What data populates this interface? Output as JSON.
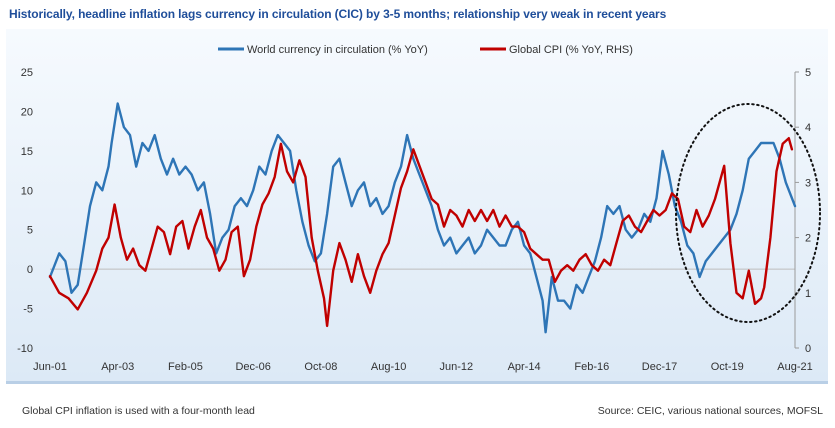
{
  "title": "Historically, headline inflation lags currency in circulation (CIC) by 3-5 months; relationship very weak in recent years",
  "footnote_left": "Global CPI inflation is used with a four-month lead",
  "footnote_right": "Source: CEIC, various national sources, MOFSL",
  "colors": {
    "cic": "#2e75b6",
    "cpi": "#c00000"
  },
  "chart_data": {
    "type": "line",
    "title": "",
    "x_range": [
      "Jun-01",
      "Aug-21"
    ],
    "x_tick_labels": [
      "Jun-01",
      "Apr-03",
      "Feb-05",
      "Dec-06",
      "Oct-08",
      "Aug-10",
      "Jun-12",
      "Apr-14",
      "Feb-16",
      "Dec-17",
      "Oct-19",
      "Aug-21"
    ],
    "y_left": {
      "range": [
        -10,
        25
      ],
      "ticks": [
        "25",
        "20",
        "15",
        "10",
        "5",
        "0",
        "-5",
        "-10"
      ]
    },
    "y_right": {
      "range": [
        0,
        5
      ],
      "ticks": [
        "5",
        "4",
        "3",
        "2",
        "1",
        "0"
      ]
    },
    "grid": false,
    "legend": "top-center",
    "annotation": "dotted ellipse around Nov-18 to Aug-21",
    "series": [
      {
        "name": "World currency in circulation (% YoY)",
        "axis": "left",
        "points": [
          [
            "Jun-01",
            -1
          ],
          [
            "Sep-01",
            2
          ],
          [
            "Nov-01",
            1
          ],
          [
            "Jan-02",
            -3
          ],
          [
            "Mar-02",
            -2
          ],
          [
            "May-02",
            3
          ],
          [
            "Jul-02",
            8
          ],
          [
            "Sep-02",
            11
          ],
          [
            "Nov-02",
            10
          ],
          [
            "Jan-03",
            13
          ],
          [
            "Feb-03",
            16
          ],
          [
            "Apr-03",
            21
          ],
          [
            "Jun-03",
            18
          ],
          [
            "Aug-03",
            17
          ],
          [
            "Oct-03",
            13
          ],
          [
            "Dec-03",
            16
          ],
          [
            "Feb-04",
            15
          ],
          [
            "Apr-04",
            17
          ],
          [
            "Jun-04",
            14
          ],
          [
            "Aug-04",
            12
          ],
          [
            "Oct-04",
            14
          ],
          [
            "Dec-04",
            12
          ],
          [
            "Feb-05",
            13
          ],
          [
            "Apr-05",
            12
          ],
          [
            "Jun-05",
            10
          ],
          [
            "Aug-05",
            11
          ],
          [
            "Oct-05",
            7
          ],
          [
            "Dec-05",
            2
          ],
          [
            "Feb-06",
            4
          ],
          [
            "Apr-06",
            5
          ],
          [
            "Jun-06",
            8
          ],
          [
            "Aug-06",
            9
          ],
          [
            "Oct-06",
            8
          ],
          [
            "Dec-06",
            10
          ],
          [
            "Feb-07",
            13
          ],
          [
            "Apr-07",
            12
          ],
          [
            "Jun-07",
            15
          ],
          [
            "Aug-07",
            17
          ],
          [
            "Oct-07",
            16
          ],
          [
            "Dec-07",
            15
          ],
          [
            "Feb-08",
            10
          ],
          [
            "Apr-08",
            6
          ],
          [
            "Jun-08",
            3
          ],
          [
            "Aug-08",
            1
          ],
          [
            "Oct-08",
            2
          ],
          [
            "Dec-08",
            7
          ],
          [
            "Feb-09",
            13
          ],
          [
            "Apr-09",
            14
          ],
          [
            "Jun-09",
            11
          ],
          [
            "Aug-09",
            8
          ],
          [
            "Oct-09",
            10
          ],
          [
            "Dec-09",
            11
          ],
          [
            "Feb-10",
            8
          ],
          [
            "Apr-10",
            9
          ],
          [
            "Jun-10",
            7
          ],
          [
            "Aug-10",
            8
          ],
          [
            "Oct-10",
            11
          ],
          [
            "Dec-10",
            13
          ],
          [
            "Feb-11",
            17
          ],
          [
            "Apr-11",
            14
          ],
          [
            "Jun-11",
            12
          ],
          [
            "Aug-11",
            10
          ],
          [
            "Oct-11",
            8
          ],
          [
            "Dec-11",
            5
          ],
          [
            "Feb-12",
            3
          ],
          [
            "Apr-12",
            4
          ],
          [
            "Jun-12",
            2
          ],
          [
            "Aug-12",
            3
          ],
          [
            "Oct-12",
            4
          ],
          [
            "Dec-12",
            2
          ],
          [
            "Feb-13",
            3
          ],
          [
            "Apr-13",
            5
          ],
          [
            "Jun-13",
            4
          ],
          [
            "Aug-13",
            3
          ],
          [
            "Oct-13",
            3
          ],
          [
            "Dec-13",
            5
          ],
          [
            "Feb-14",
            6
          ],
          [
            "Apr-14",
            3
          ],
          [
            "Jun-14",
            2
          ],
          [
            "Aug-14",
            -1
          ],
          [
            "Oct-14",
            -4
          ],
          [
            "Nov-14",
            -8
          ],
          [
            "Jan-15",
            -1
          ],
          [
            "Mar-15",
            -4
          ],
          [
            "May-15",
            -4
          ],
          [
            "Jul-15",
            -5
          ],
          [
            "Sep-15",
            -2
          ],
          [
            "Nov-15",
            -3
          ],
          [
            "Jan-16",
            -1
          ],
          [
            "Mar-16",
            1
          ],
          [
            "May-16",
            4
          ],
          [
            "Jul-16",
            8
          ],
          [
            "Sep-16",
            7
          ],
          [
            "Nov-16",
            8
          ],
          [
            "Jan-17",
            5
          ],
          [
            "Mar-17",
            4
          ],
          [
            "May-17",
            5
          ],
          [
            "Jul-17",
            7
          ],
          [
            "Sep-17",
            6
          ],
          [
            "Nov-17",
            9
          ],
          [
            "Jan-18",
            15
          ],
          [
            "Mar-18",
            12
          ],
          [
            "May-18",
            8
          ],
          [
            "Jul-18",
            6
          ],
          [
            "Sep-18",
            3
          ],
          [
            "Nov-18",
            2
          ],
          [
            "Jan-19",
            -1
          ],
          [
            "Mar-19",
            1
          ],
          [
            "May-19",
            2
          ],
          [
            "Jul-19",
            3
          ],
          [
            "Sep-19",
            4
          ],
          [
            "Nov-19",
            5
          ],
          [
            "Jan-20",
            7
          ],
          [
            "Mar-20",
            10
          ],
          [
            "May-20",
            14
          ],
          [
            "Jul-20",
            15
          ],
          [
            "Sep-20",
            16
          ],
          [
            "Nov-20",
            16
          ],
          [
            "Jan-21",
            16
          ],
          [
            "Mar-21",
            14
          ],
          [
            "May-21",
            11
          ],
          [
            "Aug-21",
            8
          ]
        ]
      },
      {
        "name": "Global CPI (% YoY, RHS)",
        "axis": "right",
        "points": [
          [
            "Jun-01",
            1.3
          ],
          [
            "Sep-01",
            1.0
          ],
          [
            "Dec-01",
            0.9
          ],
          [
            "Mar-02",
            0.7
          ],
          [
            "Jun-02",
            1.0
          ],
          [
            "Sep-02",
            1.4
          ],
          [
            "Nov-02",
            1.8
          ],
          [
            "Jan-03",
            2.0
          ],
          [
            "Mar-03",
            2.6
          ],
          [
            "May-03",
            2.0
          ],
          [
            "Jul-03",
            1.6
          ],
          [
            "Sep-03",
            1.8
          ],
          [
            "Nov-03",
            1.5
          ],
          [
            "Jan-04",
            1.4
          ],
          [
            "Mar-04",
            1.8
          ],
          [
            "May-04",
            2.2
          ],
          [
            "Jul-04",
            2.1
          ],
          [
            "Sep-04",
            1.7
          ],
          [
            "Nov-04",
            2.2
          ],
          [
            "Jan-05",
            2.3
          ],
          [
            "Mar-05",
            1.8
          ],
          [
            "May-05",
            2.2
          ],
          [
            "Jul-05",
            2.5
          ],
          [
            "Sep-05",
            2.0
          ],
          [
            "Nov-05",
            1.8
          ],
          [
            "Jan-06",
            1.4
          ],
          [
            "Mar-06",
            1.6
          ],
          [
            "May-06",
            2.1
          ],
          [
            "Jul-06",
            2.2
          ],
          [
            "Sep-06",
            1.3
          ],
          [
            "Nov-06",
            1.6
          ],
          [
            "Jan-07",
            2.2
          ],
          [
            "Mar-07",
            2.6
          ],
          [
            "May-07",
            2.8
          ],
          [
            "Jul-07",
            3.1
          ],
          [
            "Sep-07",
            3.7
          ],
          [
            "Nov-07",
            3.2
          ],
          [
            "Jan-08",
            3.0
          ],
          [
            "Mar-08",
            3.4
          ],
          [
            "May-08",
            3.1
          ],
          [
            "Jul-08",
            2.0
          ],
          [
            "Sep-08",
            1.4
          ],
          [
            "Nov-08",
            0.9
          ],
          [
            "Dec-08",
            0.4
          ],
          [
            "Feb-09",
            1.4
          ],
          [
            "Apr-09",
            1.9
          ],
          [
            "Jun-09",
            1.6
          ],
          [
            "Aug-09",
            1.2
          ],
          [
            "Oct-09",
            1.7
          ],
          [
            "Dec-09",
            1.3
          ],
          [
            "Feb-10",
            1.0
          ],
          [
            "Apr-10",
            1.4
          ],
          [
            "Jun-10",
            1.7
          ],
          [
            "Aug-10",
            1.9
          ],
          [
            "Oct-10",
            2.4
          ],
          [
            "Dec-10",
            2.9
          ],
          [
            "Feb-11",
            3.2
          ],
          [
            "Apr-11",
            3.6
          ],
          [
            "Jun-11",
            3.3
          ],
          [
            "Aug-11",
            3.0
          ],
          [
            "Oct-11",
            2.7
          ],
          [
            "Dec-11",
            2.6
          ],
          [
            "Feb-12",
            2.2
          ],
          [
            "Apr-12",
            2.5
          ],
          [
            "Jun-12",
            2.4
          ],
          [
            "Aug-12",
            2.2
          ],
          [
            "Oct-12",
            2.5
          ],
          [
            "Dec-12",
            2.3
          ],
          [
            "Feb-13",
            2.5
          ],
          [
            "Apr-13",
            2.3
          ],
          [
            "Jun-13",
            2.5
          ],
          [
            "Aug-13",
            2.2
          ],
          [
            "Oct-13",
            2.4
          ],
          [
            "Dec-13",
            2.2
          ],
          [
            "Feb-14",
            2.2
          ],
          [
            "Apr-14",
            2.1
          ],
          [
            "Jun-14",
            1.8
          ],
          [
            "Aug-14",
            1.7
          ],
          [
            "Oct-14",
            1.6
          ],
          [
            "Dec-14",
            1.6
          ],
          [
            "Feb-15",
            1.2
          ],
          [
            "Apr-15",
            1.4
          ],
          [
            "Jun-15",
            1.5
          ],
          [
            "Aug-15",
            1.4
          ],
          [
            "Oct-15",
            1.6
          ],
          [
            "Dec-15",
            1.7
          ],
          [
            "Feb-16",
            1.5
          ],
          [
            "Apr-16",
            1.4
          ],
          [
            "Jun-16",
            1.6
          ],
          [
            "Aug-16",
            1.5
          ],
          [
            "Oct-16",
            1.9
          ],
          [
            "Dec-16",
            2.3
          ],
          [
            "Feb-17",
            2.4
          ],
          [
            "Apr-17",
            2.2
          ],
          [
            "Jun-17",
            2.1
          ],
          [
            "Aug-17",
            2.3
          ],
          [
            "Oct-17",
            2.5
          ],
          [
            "Dec-17",
            2.4
          ],
          [
            "Feb-18",
            2.5
          ],
          [
            "Apr-18",
            2.8
          ],
          [
            "Jun-18",
            2.7
          ],
          [
            "Aug-18",
            2.2
          ],
          [
            "Oct-18",
            2.1
          ],
          [
            "Dec-18",
            2.5
          ],
          [
            "Feb-19",
            2.2
          ],
          [
            "Apr-19",
            2.4
          ],
          [
            "Jun-19",
            2.7
          ],
          [
            "Aug-19",
            3.1
          ],
          [
            "Sep-19",
            3.3
          ],
          [
            "Nov-19",
            1.9
          ],
          [
            "Jan-20",
            1.0
          ],
          [
            "Mar-20",
            0.9
          ],
          [
            "May-20",
            1.4
          ],
          [
            "Jul-20",
            0.8
          ],
          [
            "Sep-20",
            0.9
          ],
          [
            "Oct-20",
            1.1
          ],
          [
            "Dec-20",
            2.0
          ],
          [
            "Feb-21",
            3.2
          ],
          [
            "Apr-21",
            3.7
          ],
          [
            "Jun-21",
            3.8
          ],
          [
            "Jul-21",
            3.6
          ]
        ]
      }
    ]
  }
}
